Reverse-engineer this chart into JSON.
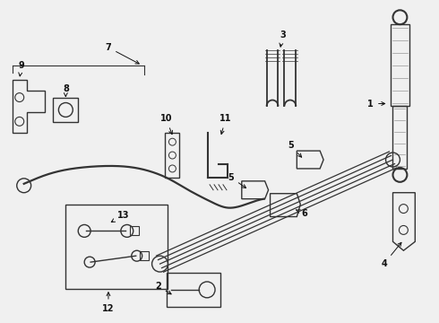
{
  "bg_color": "#f0f0f0",
  "line_color": "#333333",
  "line_width": 1.0,
  "label_fontsize": 7,
  "figsize": [
    4.9,
    3.6
  ],
  "dpi": 100
}
